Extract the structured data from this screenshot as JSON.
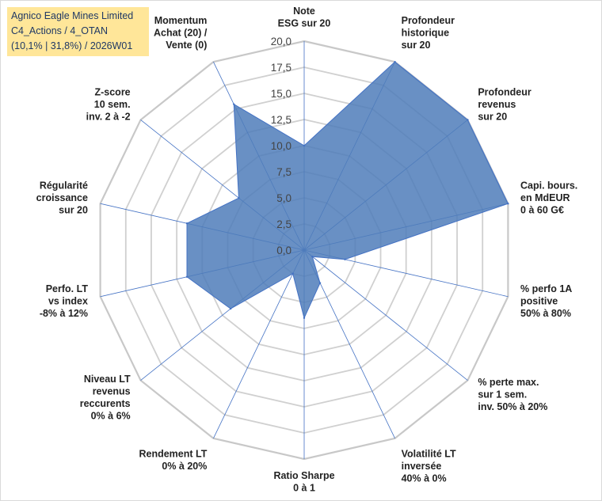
{
  "title": {
    "line1": "Agnico Eagle Mines Limited",
    "line2": "C4_Actions / 4_OTAN",
    "line3": "(10,1% | 31,8%) / 2026W01"
  },
  "colors": {
    "fill": "#4f7dba",
    "stroke": "#4472c4",
    "grid": "#d0d0d0",
    "spoke": "#4472c4",
    "text": "#222222",
    "titleBg": "#ffe699",
    "titleText": "#1f3864"
  },
  "chart_data": {
    "type": "radar",
    "rmin": 0,
    "rmax": 20,
    "step": 2.5,
    "tick_labels": [
      "0,0",
      "2,5",
      "5,0",
      "7,5",
      "10,0",
      "12,5",
      "15,0",
      "17,5",
      "20,0"
    ],
    "axes": [
      {
        "label": [
          "Note",
          "ESG sur 20"
        ],
        "value": 10.0
      },
      {
        "label": [
          "Profondeur",
          "historique",
          "sur 20"
        ],
        "value": 20.0
      },
      {
        "label": [
          "Profondeur",
          "revenus",
          "sur 20"
        ],
        "value": 20.0
      },
      {
        "label": [
          "Capi. bours.",
          "en MdEUR",
          "0 à 60 G€"
        ],
        "value": 20.0
      },
      {
        "label": [
          "% perfo 1A",
          "positive",
          "50% à 80%"
        ],
        "value": 4.0
      },
      {
        "label": [
          "% perte max.",
          "sur 1 sem.",
          "inv. 50% à 20%"
        ],
        "value": 1.0
      },
      {
        "label": [
          "Volatilité LT",
          "inversée",
          "40% à 0%"
        ],
        "value": 3.5
      },
      {
        "label": [
          "Ratio Sharpe",
          "0 à 1"
        ],
        "value": 6.5
      },
      {
        "label": [
          "Rendement LT",
          "0% à 20%"
        ],
        "value": 2.5
      },
      {
        "label": [
          "Niveau LT",
          "revenus",
          "reccurents",
          "0% à 6%"
        ],
        "value": 9.0
      },
      {
        "label": [
          "Perfo. LT",
          "vs index",
          "-8% à 12%"
        ],
        "value": 11.5
      },
      {
        "label": [
          "Régularité",
          "croissance",
          "sur 20"
        ],
        "value": 11.5
      },
      {
        "label": [
          "Z-score",
          "10 sem.",
          "inv. 2 à -2"
        ],
        "value": 8.0
      },
      {
        "label": [
          "Momentum",
          "Achat (20) /",
          "Vente (0)"
        ],
        "value": 15.5
      }
    ]
  }
}
